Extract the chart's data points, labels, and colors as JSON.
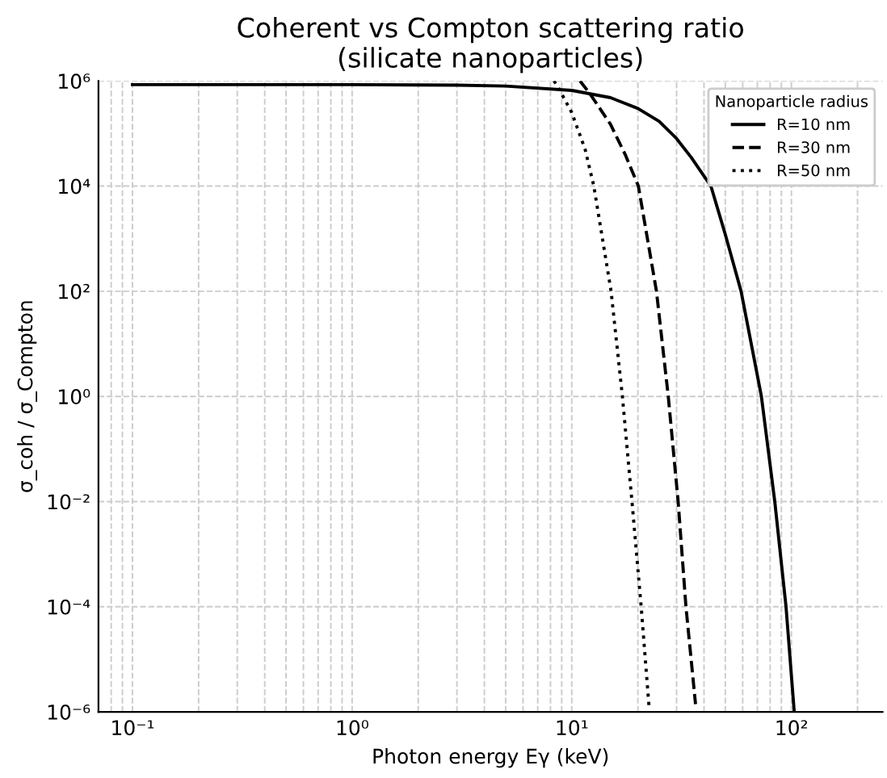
{
  "chart_data": {
    "type": "line",
    "title": "Coherent vs Compton scattering ratio\n(silicate nanoparticles)",
    "xlabel": "Photon energy Eγ (keV)",
    "ylabel": "σ_coh / σ_Compton",
    "legend_title": "Nanoparticle radius",
    "legend": "top right",
    "log": "xy",
    "grid": true,
    "xlim": [
      0.07,
      260
    ],
    "ylim": [
      1e-06,
      1000000.0
    ],
    "xticks": [
      {
        "value": 0.1,
        "label": "10⁻¹"
      },
      {
        "value": 1,
        "label": "10⁰"
      },
      {
        "value": 10,
        "label": "10¹"
      },
      {
        "value": 100,
        "label": "10²"
      }
    ],
    "yticks": [
      {
        "value": 1e-06,
        "label": "10⁻⁶"
      },
      {
        "value": 0.0001,
        "label": "10⁻⁴"
      },
      {
        "value": 0.01,
        "label": "10⁻²"
      },
      {
        "value": 1,
        "label": "10⁰"
      },
      {
        "value": 100,
        "label": "10²"
      },
      {
        "value": 10000,
        "label": "10⁴"
      },
      {
        "value": 1000000,
        "label": "10⁶"
      }
    ],
    "series": [
      {
        "name": "R=10 nm",
        "color": "#000000",
        "line_style": "solid",
        "x": [
          0.1,
          1,
          3,
          5,
          10,
          15,
          20,
          25,
          30,
          35,
          43,
          50,
          59,
          73,
          84,
          94.5,
          103
        ],
        "values": [
          850000,
          850000,
          830000,
          800000,
          660000,
          480000,
          300000,
          170000,
          80000,
          35000,
          10000,
          1200,
          100,
          1,
          0.01,
          0.0001,
          1e-06
        ]
      },
      {
        "name": "R=30 nm",
        "color": "#000000",
        "line_style": "dashed",
        "x": [
          10.9,
          12.1,
          15,
          17.5,
          20.1,
          24.3,
          27.5,
          30.5,
          33.1,
          36.6
        ],
        "values": [
          1000000,
          570000,
          150000,
          40000,
          10000,
          100,
          1,
          0.01,
          0.0001,
          1.4e-06
        ]
      },
      {
        "name": "R=50 nm",
        "color": "#000000",
        "line_style": "dotted",
        "x": [
          8.3,
          8.6,
          10,
          11.5,
          12.6,
          15.1,
          17.0,
          18.8,
          20.7,
          22.5
        ],
        "values": [
          1000000,
          800000,
          250000,
          50000,
          10000,
          100,
          1,
          0.01,
          0.0001,
          1.2e-06
        ]
      }
    ]
  }
}
